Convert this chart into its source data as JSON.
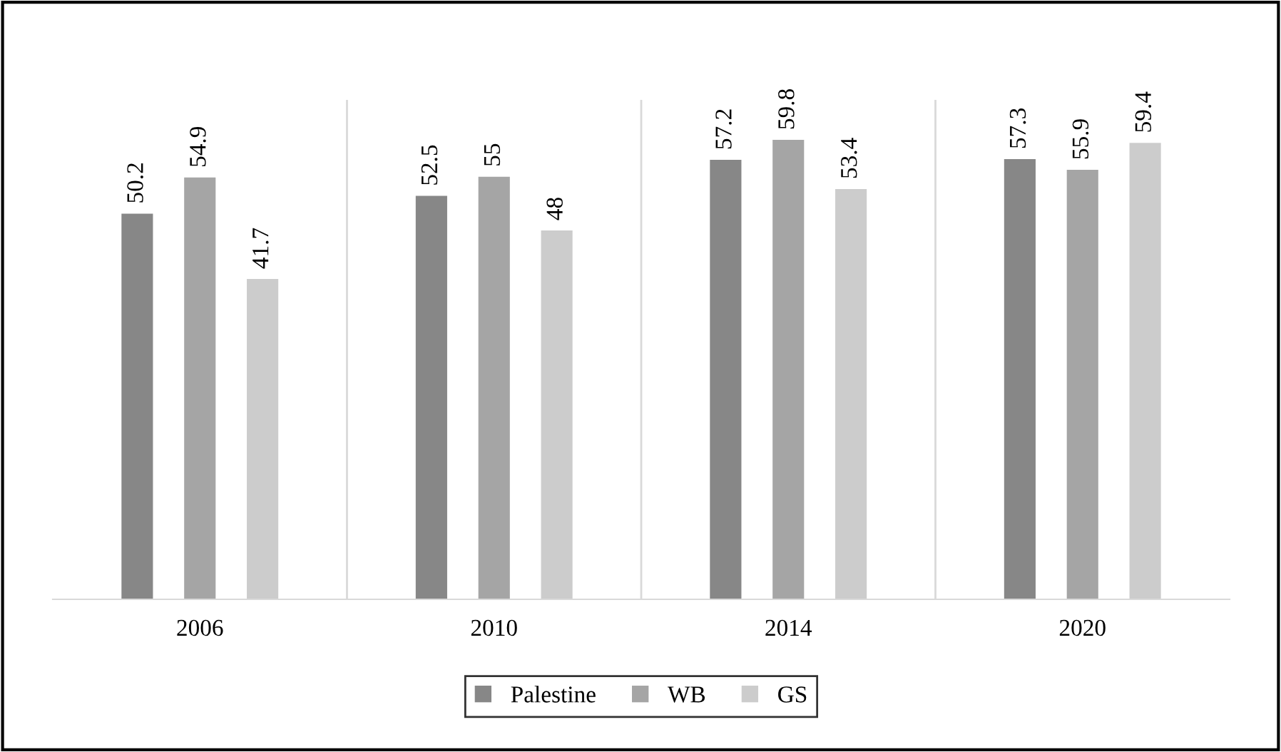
{
  "chart_data": {
    "type": "bar",
    "categories": [
      "2006",
      "2010",
      "2014",
      "2020"
    ],
    "series": [
      {
        "name": "Palestine",
        "color": "#878787",
        "values": [
          50.2,
          52.5,
          57.2,
          57.3
        ]
      },
      {
        "name": "WB",
        "color": "#a5a5a5",
        "values": [
          54.9,
          55,
          59.8,
          55.9
        ]
      },
      {
        "name": "GS",
        "color": "#cccccc",
        "values": [
          41.7,
          48,
          53.4,
          59.4
        ]
      }
    ],
    "ylim": [
      0,
      65
    ],
    "tick_labels": "x",
    "data_labels": true,
    "grid": "x",
    "legend": "bottom"
  }
}
